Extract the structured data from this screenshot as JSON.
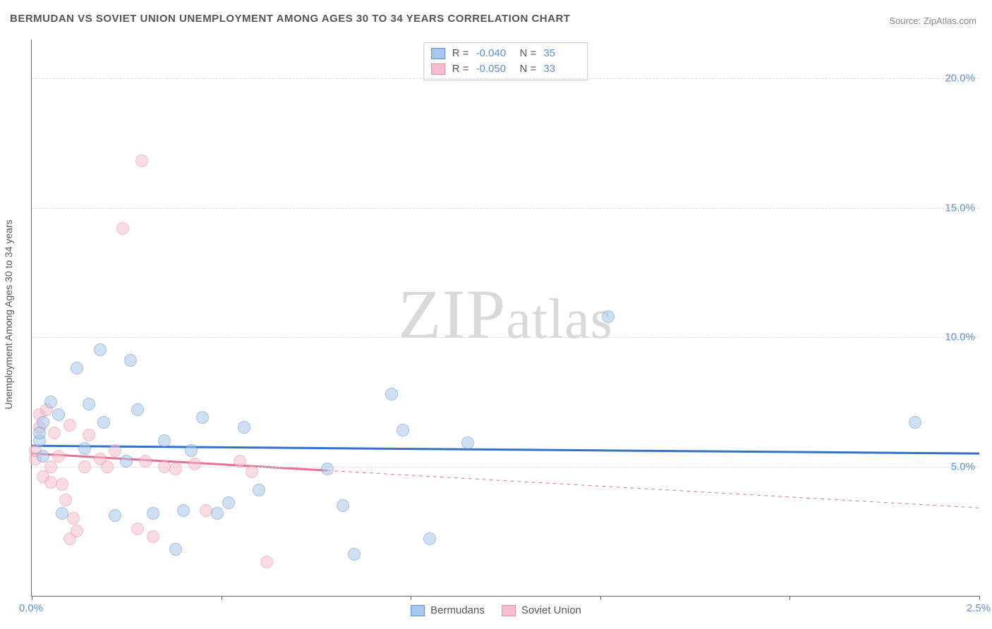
{
  "title": "BERMUDAN VS SOVIET UNION UNEMPLOYMENT AMONG AGES 30 TO 34 YEARS CORRELATION CHART",
  "source": "Source: ZipAtlas.com",
  "watermark": "ZIPatlas",
  "y_axis_label": "Unemployment Among Ages 30 to 34 years",
  "chart": {
    "type": "scatter",
    "background_color": "#ffffff",
    "grid_color": "#dddddd",
    "axis_color": "#666666",
    "tick_label_color": "#5b8fd6",
    "xlim": [
      0.0,
      2.5
    ],
    "ylim": [
      0.0,
      21.5
    ],
    "yticks": [
      5.0,
      10.0,
      15.0,
      20.0
    ],
    "ytick_labels": [
      "5.0%",
      "10.0%",
      "15.0%",
      "20.0%"
    ],
    "xticks": [
      0.0,
      0.5,
      1.0,
      1.5,
      2.0,
      2.5
    ],
    "xtick_labels": [
      "0.0%",
      "",
      "",
      "",
      "",
      "2.5%"
    ],
    "point_radius": 9,
    "point_opacity": 0.55,
    "series": [
      {
        "name": "Bermudans",
        "color_fill": "#a9c7ec",
        "color_stroke": "#5b8fd6",
        "line_color": "#3272c9",
        "line_width": 3,
        "R": "-0.040",
        "N": "35",
        "trend": {
          "x1": 0.0,
          "y1": 5.8,
          "x2": 2.5,
          "y2": 5.5
        },
        "trend_dash_from_x": null,
        "points": [
          {
            "x": 0.02,
            "y": 6.0
          },
          {
            "x": 0.02,
            "y": 6.3
          },
          {
            "x": 0.03,
            "y": 6.7
          },
          {
            "x": 0.03,
            "y": 5.4
          },
          {
            "x": 0.07,
            "y": 7.0
          },
          {
            "x": 0.08,
            "y": 3.2
          },
          {
            "x": 0.12,
            "y": 8.8
          },
          {
            "x": 0.14,
            "y": 5.7
          },
          {
            "x": 0.15,
            "y": 7.4
          },
          {
            "x": 0.18,
            "y": 9.5
          },
          {
            "x": 0.19,
            "y": 6.7
          },
          {
            "x": 0.22,
            "y": 3.1
          },
          {
            "x": 0.25,
            "y": 5.2
          },
          {
            "x": 0.26,
            "y": 9.1
          },
          {
            "x": 0.28,
            "y": 7.2
          },
          {
            "x": 0.32,
            "y": 3.2
          },
          {
            "x": 0.35,
            "y": 6.0
          },
          {
            "x": 0.38,
            "y": 1.8
          },
          {
            "x": 0.4,
            "y": 3.3
          },
          {
            "x": 0.42,
            "y": 5.6
          },
          {
            "x": 0.45,
            "y": 6.9
          },
          {
            "x": 0.49,
            "y": 3.2
          },
          {
            "x": 0.52,
            "y": 3.6
          },
          {
            "x": 0.56,
            "y": 6.5
          },
          {
            "x": 0.6,
            "y": 4.1
          },
          {
            "x": 0.78,
            "y": 4.9
          },
          {
            "x": 0.82,
            "y": 3.5
          },
          {
            "x": 0.85,
            "y": 1.6
          },
          {
            "x": 0.95,
            "y": 7.8
          },
          {
            "x": 0.98,
            "y": 6.4
          },
          {
            "x": 1.05,
            "y": 2.2
          },
          {
            "x": 1.15,
            "y": 5.9
          },
          {
            "x": 1.52,
            "y": 10.8
          },
          {
            "x": 2.33,
            "y": 6.7
          },
          {
            "x": 0.05,
            "y": 7.5
          }
        ]
      },
      {
        "name": "Soviet Union",
        "color_fill": "#f5bfcb",
        "color_stroke": "#e88aa2",
        "line_color": "#e76f91",
        "line_width": 3,
        "R": "-0.050",
        "N": "33",
        "trend": {
          "x1": 0.0,
          "y1": 5.5,
          "x2": 2.5,
          "y2": 3.4
        },
        "trend_dash_from_x": 0.78,
        "points": [
          {
            "x": 0.01,
            "y": 5.3
          },
          {
            "x": 0.01,
            "y": 5.6
          },
          {
            "x": 0.02,
            "y": 7.0
          },
          {
            "x": 0.02,
            "y": 6.5
          },
          {
            "x": 0.03,
            "y": 4.6
          },
          {
            "x": 0.04,
            "y": 7.2
          },
          {
            "x": 0.05,
            "y": 5.0
          },
          {
            "x": 0.05,
            "y": 4.4
          },
          {
            "x": 0.06,
            "y": 6.3
          },
          {
            "x": 0.07,
            "y": 5.4
          },
          {
            "x": 0.08,
            "y": 4.3
          },
          {
            "x": 0.09,
            "y": 3.7
          },
          {
            "x": 0.1,
            "y": 2.2
          },
          {
            "x": 0.1,
            "y": 6.6
          },
          {
            "x": 0.11,
            "y": 3.0
          },
          {
            "x": 0.12,
            "y": 2.5
          },
          {
            "x": 0.14,
            "y": 5.0
          },
          {
            "x": 0.15,
            "y": 6.2
          },
          {
            "x": 0.18,
            "y": 5.3
          },
          {
            "x": 0.2,
            "y": 5.0
          },
          {
            "x": 0.22,
            "y": 5.6
          },
          {
            "x": 0.24,
            "y": 14.2
          },
          {
            "x": 0.28,
            "y": 2.6
          },
          {
            "x": 0.29,
            "y": 16.8
          },
          {
            "x": 0.3,
            "y": 5.2
          },
          {
            "x": 0.32,
            "y": 2.3
          },
          {
            "x": 0.35,
            "y": 5.0
          },
          {
            "x": 0.38,
            "y": 4.9
          },
          {
            "x": 0.43,
            "y": 5.1
          },
          {
            "x": 0.46,
            "y": 3.3
          },
          {
            "x": 0.55,
            "y": 5.2
          },
          {
            "x": 0.58,
            "y": 4.8
          },
          {
            "x": 0.62,
            "y": 1.3
          }
        ]
      }
    ]
  },
  "legend_top_labels": {
    "R_label": "R =",
    "N_label": "N ="
  },
  "legend_bottom": [
    "Bermudans",
    "Soviet Union"
  ]
}
